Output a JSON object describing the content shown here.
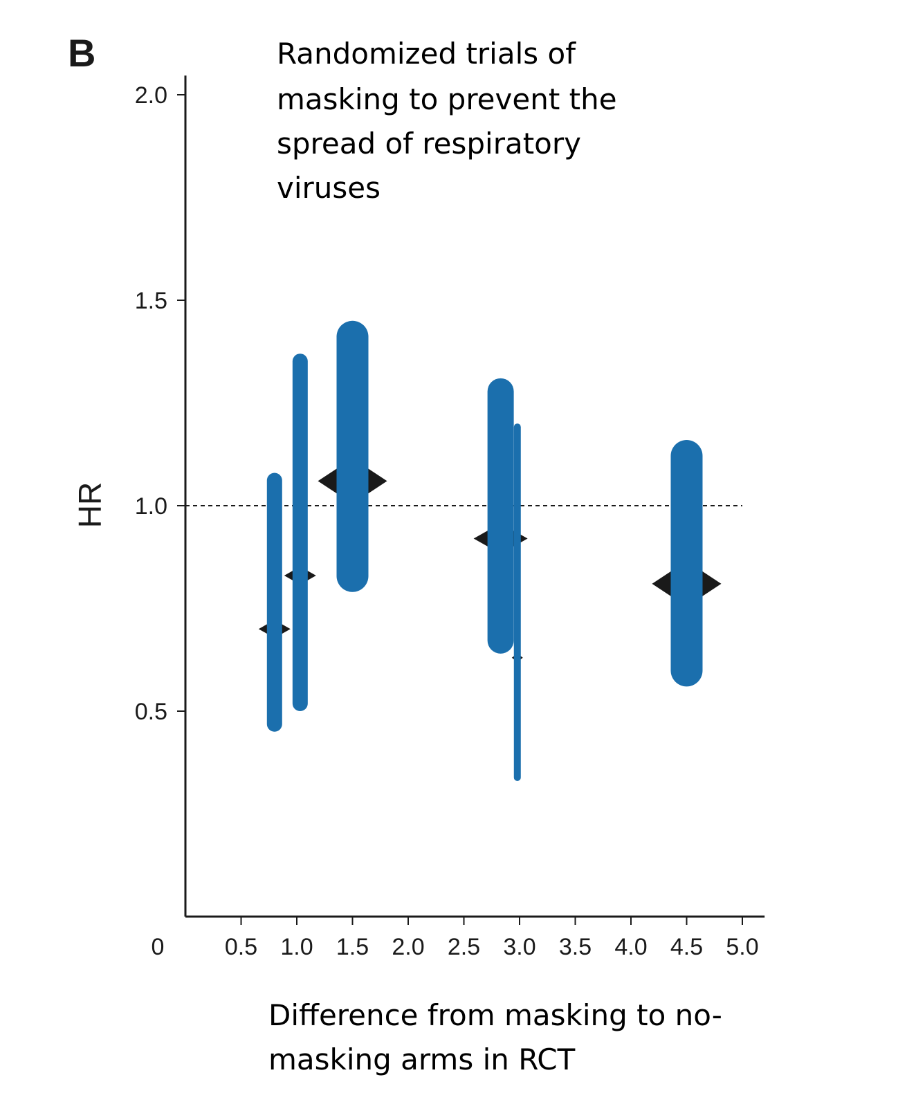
{
  "panel_label": "B",
  "chart_data": {
    "type": "scatter",
    "title_lines": [
      "Randomized trials of",
      "masking to prevent the",
      "spread of respiratory",
      "viruses"
    ],
    "xlabel_lines": [
      "Difference from masking to no-",
      "masking arms in RCT"
    ],
    "ylabel": "HR",
    "x_origin_label": "0",
    "xlim": [
      0,
      5.2
    ],
    "ylim": [
      0,
      2.05
    ],
    "x_ticks": [
      {
        "value": 0.5,
        "label": "0.5"
      },
      {
        "value": 1.0,
        "label": "1.0"
      },
      {
        "value": 1.5,
        "label": "1.5"
      },
      {
        "value": 2.0,
        "label": "2.0"
      },
      {
        "value": 2.5,
        "label": "2.5"
      },
      {
        "value": 3.0,
        "label": "3.0"
      },
      {
        "value": 3.5,
        "label": "3.5"
      },
      {
        "value": 4.0,
        "label": "4.0"
      },
      {
        "value": 4.5,
        "label": "4.5"
      },
      {
        "value": 5.0,
        "label": "5.0"
      }
    ],
    "y_ticks": [
      {
        "value": 0.5,
        "label": "0.5"
      },
      {
        "value": 1.0,
        "label": "1.0"
      },
      {
        "value": 1.5,
        "label": "1.5"
      },
      {
        "value": 2.0,
        "label": "2.0"
      }
    ],
    "reference_line": {
      "y": 1.0,
      "style": "dashed"
    },
    "interval_color": "#1b6fad",
    "point_color": "#1a1a1a",
    "points": [
      {
        "x": 0.8,
        "hr": 0.7,
        "lower": 0.45,
        "upper": 1.08,
        "weight": "small"
      },
      {
        "x": 1.03,
        "hr": 0.83,
        "lower": 0.5,
        "upper": 1.37,
        "weight": "small"
      },
      {
        "x": 1.5,
        "hr": 1.06,
        "lower": 0.79,
        "upper": 1.45,
        "weight": "large"
      },
      {
        "x": 2.83,
        "hr": 0.92,
        "lower": 0.64,
        "upper": 1.31,
        "weight": "medium"
      },
      {
        "x": 2.98,
        "hr": 0.63,
        "lower": 0.33,
        "upper": 1.2,
        "weight": "tiny"
      },
      {
        "x": 4.5,
        "hr": 0.81,
        "lower": 0.56,
        "upper": 1.16,
        "weight": "large"
      }
    ],
    "grid": false,
    "legend": "none"
  }
}
